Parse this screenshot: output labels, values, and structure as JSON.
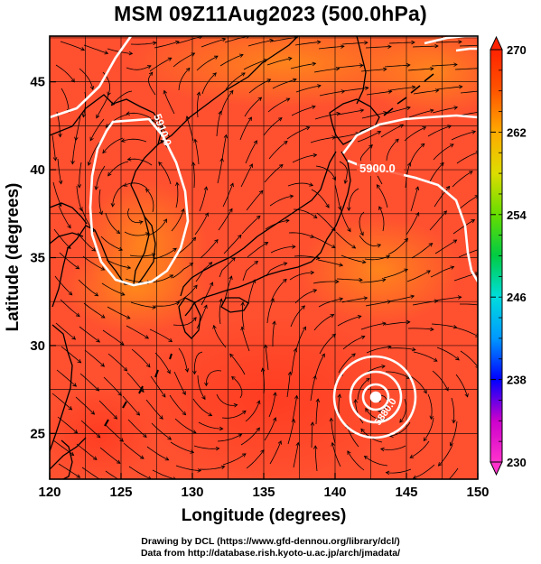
{
  "title": "MSM 09Z11Aug2023 (500.0hPa)",
  "credits": {
    "line1": "Drawing by DCL (https://www.gfd-dennou.org/library/dcl/)",
    "line2": "Data from http://database.rish.kyoto-u.ac.jp/arch/jmadata/"
  },
  "axes": {
    "xlabel": "Longitude (degrees)",
    "ylabel": "Latitude  (degrees)",
    "xlim": [
      120,
      150
    ],
    "ylim": [
      22.4,
      47.6
    ],
    "xticks": [
      "120",
      "125",
      "130",
      "135",
      "140",
      "145",
      "150"
    ],
    "yticks": [
      "25",
      "30",
      "35",
      "40",
      "45"
    ]
  },
  "colorbar": {
    "range": [
      230,
      270
    ],
    "ticks": [
      "270",
      "262",
      "254",
      "246",
      "238",
      "230"
    ],
    "colors": [
      "#ff33cc",
      "#cc00cc",
      "#0000ff",
      "#0099ff",
      "#00dddd",
      "#00cc44",
      "#66dd00",
      "#dddd00",
      "#ffaa00",
      "#ff5500",
      "#ff2200"
    ]
  },
  "contours": [
    {
      "label": "5900.0"
    },
    {
      "label": "5910.0"
    },
    {
      "label": "5880.0"
    }
  ],
  "colors": {
    "field_base": "#ff5030",
    "warm": "#ff7a1a",
    "contour": "#ffffff",
    "coastline": "#000000",
    "grid": "#000000"
  }
}
